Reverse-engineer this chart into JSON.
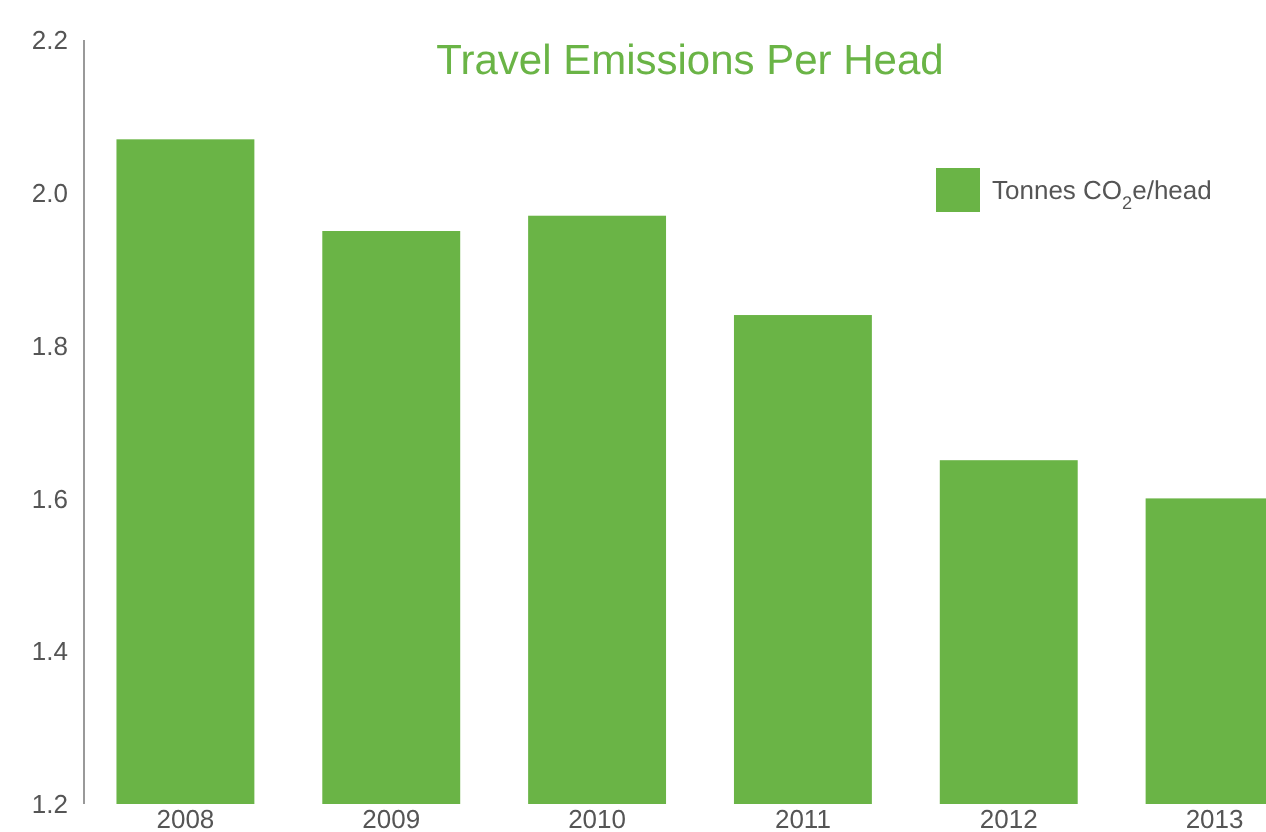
{
  "chart_data": {
    "type": "bar",
    "title": "Travel Emissions Per Head",
    "categories": [
      "2008",
      "2009",
      "2010",
      "2011",
      "2012",
      "2013"
    ],
    "series": [
      {
        "name": "Tonnes CO$_{2}$e/head",
        "color": "#6ab446",
        "values": [
          2.07,
          1.95,
          1.97,
          1.84,
          1.65,
          1.6
        ]
      }
    ],
    "ylim": [
      1.2,
      2.2
    ],
    "yticks": [
      1.2,
      1.4,
      1.6,
      1.8,
      {
        "value": 2,
        "label": "2.0"
      },
      2.2
    ],
    "grid": false,
    "legend": "top right"
  }
}
